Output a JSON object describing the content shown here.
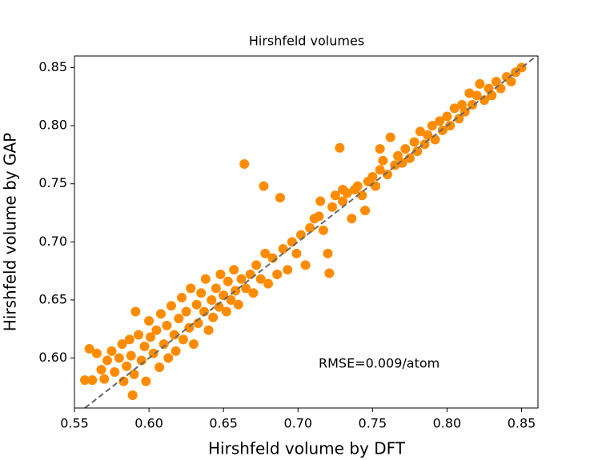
{
  "chart_data": {
    "type": "scatter",
    "title": "Hirshfeld volumes",
    "x_label": "Hirshfeld volume by DFT",
    "y_label": "Hirshfeld volume by GAP",
    "annotation": "RMSE=0.009/atom",
    "xlim": [
      0.55,
      0.861
    ],
    "ylim": [
      0.557,
      0.86
    ],
    "xticks": [
      0.55,
      {
        "value": 0.6,
        "label": "0.60"
      },
      0.65,
      {
        "value": 0.7,
        "label": "0.70"
      },
      0.75,
      {
        "value": 0.8,
        "label": "0.80"
      },
      0.85
    ],
    "yticks": [
      {
        "value": 0.6,
        "label": "0.60"
      },
      0.65,
      {
        "value": 0.7,
        "label": "0.70"
      },
      0.75,
      {
        "value": 0.8,
        "label": "0.80"
      },
      0.85
    ],
    "series": [
      {
        "color": "#ff8c00",
        "x": [
          0.557,
          0.56,
          0.562,
          0.565,
          0.568,
          0.57,
          0.572,
          0.575,
          0.577,
          0.58,
          0.582,
          0.583,
          0.585,
          0.587,
          0.588,
          0.589,
          0.59,
          0.591,
          0.593,
          0.595,
          0.597,
          0.598,
          0.6,
          0.601,
          0.603,
          0.605,
          0.607,
          0.608,
          0.61,
          0.612,
          0.613,
          0.615,
          0.617,
          0.618,
          0.62,
          0.622,
          0.623,
          0.625,
          0.627,
          0.628,
          0.63,
          0.632,
          0.633,
          0.635,
          0.637,
          0.638,
          0.64,
          0.642,
          0.643,
          0.645,
          0.647,
          0.648,
          0.65,
          0.652,
          0.653,
          0.655,
          0.657,
          0.658,
          0.66,
          0.662,
          0.664,
          0.665,
          0.668,
          0.67,
          0.672,
          0.675,
          0.677,
          0.678,
          0.68,
          0.683,
          0.686,
          0.688,
          0.69,
          0.693,
          0.696,
          0.699,
          0.702,
          0.705,
          0.708,
          0.711,
          0.714,
          0.715,
          0.717,
          0.72,
          0.721,
          0.723,
          0.725,
          0.728,
          0.73,
          0.73,
          0.733,
          0.736,
          0.738,
          0.74,
          0.743,
          0.745,
          0.747,
          0.75,
          0.752,
          0.755,
          0.755,
          0.757,
          0.76,
          0.762,
          0.765,
          0.767,
          0.77,
          0.772,
          0.775,
          0.778,
          0.78,
          0.782,
          0.785,
          0.787,
          0.79,
          0.792,
          0.795,
          0.797,
          0.8,
          0.802,
          0.805,
          0.808,
          0.81,
          0.812,
          0.815,
          0.817,
          0.82,
          0.822,
          0.825,
          0.828,
          0.83,
          0.833,
          0.836,
          0.84,
          0.843,
          0.846,
          0.85
        ],
        "values": [
          0.581,
          0.608,
          0.581,
          0.604,
          0.59,
          0.582,
          0.598,
          0.606,
          0.588,
          0.6,
          0.612,
          0.58,
          0.593,
          0.616,
          0.602,
          0.568,
          0.586,
          0.64,
          0.62,
          0.598,
          0.61,
          0.58,
          0.632,
          0.618,
          0.604,
          0.624,
          0.592,
          0.638,
          0.612,
          0.628,
          0.6,
          0.645,
          0.62,
          0.606,
          0.634,
          0.652,
          0.616,
          0.64,
          0.626,
          0.66,
          0.612,
          0.646,
          0.63,
          0.656,
          0.64,
          0.668,
          0.624,
          0.65,
          0.635,
          0.66,
          0.644,
          0.672,
          0.654,
          0.64,
          0.666,
          0.65,
          0.676,
          0.658,
          0.646,
          0.668,
          0.767,
          0.66,
          0.672,
          0.656,
          0.68,
          0.668,
          0.748,
          0.69,
          0.664,
          0.686,
          0.672,
          0.738,
          0.694,
          0.676,
          0.7,
          0.69,
          0.706,
          0.68,
          0.712,
          0.72,
          0.722,
          0.735,
          0.71,
          0.69,
          0.673,
          0.73,
          0.74,
          0.781,
          0.735,
          0.745,
          0.742,
          0.72,
          0.745,
          0.748,
          0.74,
          0.727,
          0.752,
          0.756,
          0.748,
          0.762,
          0.78,
          0.77,
          0.758,
          0.79,
          0.766,
          0.774,
          0.768,
          0.78,
          0.772,
          0.786,
          0.778,
          0.795,
          0.784,
          0.792,
          0.8,
          0.788,
          0.804,
          0.796,
          0.808,
          0.8,
          0.815,
          0.806,
          0.818,
          0.812,
          0.828,
          0.818,
          0.826,
          0.836,
          0.822,
          0.832,
          0.826,
          0.838,
          0.832,
          0.842,
          0.838,
          0.846,
          0.85
        ]
      }
    ]
  }
}
